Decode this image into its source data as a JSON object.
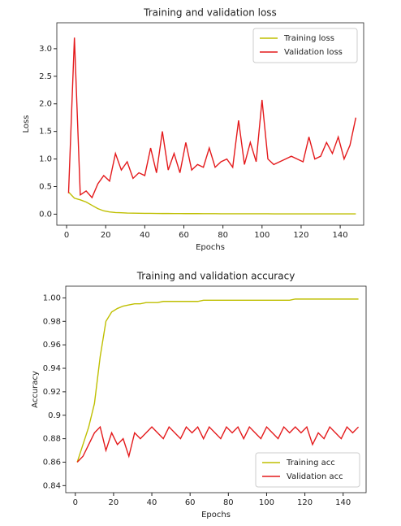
{
  "chart_data": [
    {
      "type": "line",
      "title": "Training and validation loss",
      "xlabel": "Epochs",
      "ylabel": "Loss",
      "x": [
        1,
        4,
        7,
        10,
        13,
        16,
        19,
        22,
        25,
        28,
        31,
        34,
        37,
        40,
        43,
        46,
        49,
        52,
        55,
        58,
        61,
        64,
        67,
        70,
        73,
        76,
        79,
        82,
        85,
        88,
        91,
        94,
        97,
        100,
        103,
        106,
        109,
        112,
        115,
        118,
        121,
        124,
        127,
        130,
        133,
        136,
        139,
        142,
        145,
        148
      ],
      "series": [
        {
          "name": "Training loss",
          "color": "#bfbf00",
          "values": [
            0.4,
            0.29,
            0.26,
            0.22,
            0.16,
            0.1,
            0.06,
            0.04,
            0.03,
            0.025,
            0.02,
            0.018,
            0.016,
            0.015,
            0.014,
            0.013,
            0.012,
            0.012,
            0.011,
            0.011,
            0.01,
            0.01,
            0.01,
            0.009,
            0.009,
            0.009,
            0.008,
            0.008,
            0.008,
            0.008,
            0.007,
            0.007,
            0.007,
            0.007,
            0.007,
            0.006,
            0.006,
            0.006,
            0.006,
            0.006,
            0.006,
            0.005,
            0.005,
            0.005,
            0.005,
            0.005,
            0.005,
            0.005,
            0.005,
            0.005
          ]
        },
        {
          "name": "Validation loss",
          "color": "#e41a1c",
          "values": [
            0.38,
            3.2,
            0.35,
            0.42,
            0.3,
            0.55,
            0.7,
            0.6,
            1.1,
            0.8,
            0.95,
            0.65,
            0.75,
            0.7,
            1.2,
            0.75,
            1.5,
            0.8,
            1.1,
            0.75,
            1.3,
            0.8,
            0.9,
            0.85,
            1.2,
            0.85,
            0.95,
            1.0,
            0.85,
            1.7,
            0.9,
            1.3,
            0.95,
            2.07,
            1.0,
            0.9,
            0.95,
            1.0,
            1.05,
            1.0,
            0.95,
            1.4,
            1.0,
            1.05,
            1.3,
            1.1,
            1.4,
            1.0,
            1.25,
            1.75
          ]
        }
      ],
      "xlim": [
        -5,
        152
      ],
      "xticks": [
        0,
        20,
        40,
        60,
        80,
        100,
        120,
        140
      ],
      "ylim": [
        -0.2,
        3.47
      ],
      "yticks": [
        {
          "value": 0,
          "label": "0.0"
        },
        0.5,
        {
          "value": 1,
          "label": "1.0"
        },
        1.5,
        {
          "value": 2,
          "label": "2.0"
        },
        2.5,
        {
          "value": 3,
          "label": "3.0"
        }
      ],
      "legend": "upper right"
    },
    {
      "type": "line",
      "title": "Training and validation accuracy",
      "xlabel": "Epochs",
      "ylabel": "Accuracy",
      "x": [
        1,
        4,
        7,
        10,
        13,
        16,
        19,
        22,
        25,
        28,
        31,
        34,
        37,
        40,
        43,
        46,
        49,
        52,
        55,
        58,
        61,
        64,
        67,
        70,
        73,
        76,
        79,
        82,
        85,
        88,
        91,
        94,
        97,
        100,
        103,
        106,
        109,
        112,
        115,
        118,
        121,
        124,
        127,
        130,
        133,
        136,
        139,
        142,
        145,
        148
      ],
      "series": [
        {
          "name": "Training acc",
          "color": "#bfbf00",
          "values": [
            0.86,
            0.875,
            0.89,
            0.91,
            0.95,
            0.98,
            0.988,
            0.991,
            0.993,
            0.994,
            0.995,
            0.995,
            0.996,
            0.996,
            0.996,
            0.997,
            0.997,
            0.997,
            0.997,
            0.997,
            0.997,
            0.997,
            0.998,
            0.998,
            0.998,
            0.998,
            0.998,
            0.998,
            0.998,
            0.998,
            0.998,
            0.998,
            0.998,
            0.998,
            0.998,
            0.998,
            0.998,
            0.998,
            0.999,
            0.999,
            0.999,
            0.999,
            0.999,
            0.999,
            0.999,
            0.999,
            0.999,
            0.999,
            0.999,
            0.999
          ]
        },
        {
          "name": "Validation acc",
          "color": "#e41a1c",
          "values": [
            0.86,
            0.865,
            0.875,
            0.885,
            0.89,
            0.87,
            0.885,
            0.875,
            0.88,
            0.865,
            0.885,
            0.88,
            0.885,
            0.89,
            0.885,
            0.88,
            0.89,
            0.885,
            0.88,
            0.89,
            0.885,
            0.89,
            0.88,
            0.89,
            0.885,
            0.88,
            0.89,
            0.885,
            0.89,
            0.88,
            0.89,
            0.885,
            0.88,
            0.89,
            0.885,
            0.88,
            0.89,
            0.885,
            0.89,
            0.885,
            0.89,
            0.875,
            0.885,
            0.88,
            0.89,
            0.885,
            0.88,
            0.89,
            0.885,
            0.89
          ]
        }
      ],
      "xlim": [
        -5,
        152
      ],
      "xticks": [
        0,
        20,
        40,
        60,
        80,
        100,
        120,
        140
      ],
      "ylim": [
        0.834,
        1.01
      ],
      "yticks": [
        0.84,
        0.86,
        0.88,
        0.9,
        0.92,
        0.94,
        0.96,
        0.98,
        {
          "value": 1,
          "label": "1.00"
        }
      ],
      "legend": "lower right"
    }
  ]
}
